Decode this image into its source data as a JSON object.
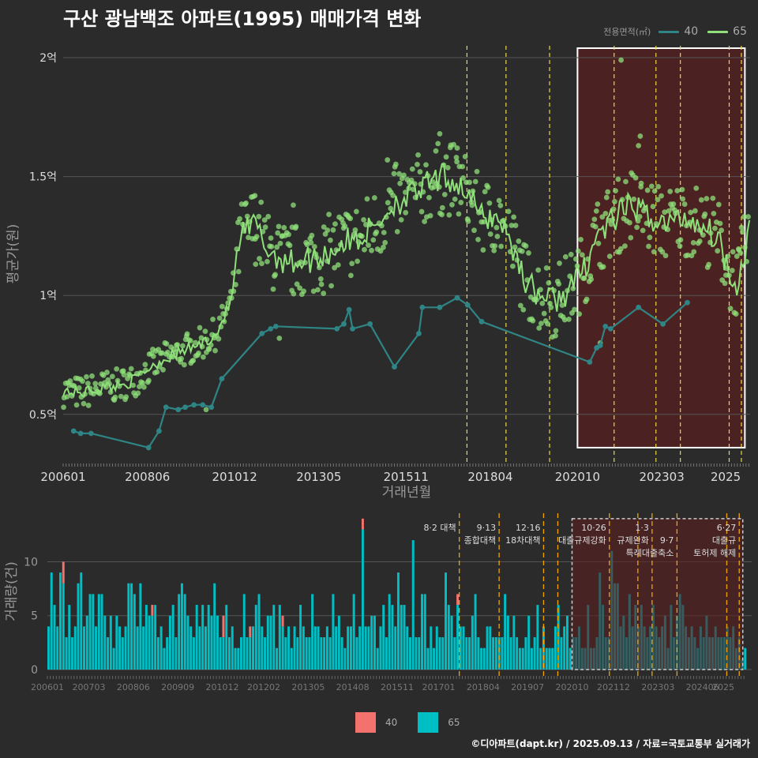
{
  "title": "구산 광남백조 아파트(1995) 매매가격 변화",
  "legend_top": {
    "label": "전용면적(㎡)",
    "items": [
      {
        "name": "40",
        "color": "#2f8585"
      },
      {
        "name": "65",
        "color": "#8fe07a"
      }
    ]
  },
  "legend_bottom": {
    "items": [
      {
        "name": "40",
        "color": "#f4726e"
      },
      {
        "name": "65",
        "color": "#00bfc4"
      }
    ]
  },
  "footer": "©디아파트(dapt.kr) / 2025.09.13 / 자료=국토교통부 실거래가",
  "colors": {
    "bg": "#2b2b2b",
    "line40": "#2f8585",
    "line65": "#8fe07a",
    "bar40": "#f4726e",
    "bar65": "#00bfc4",
    "vline": "#e8d84b",
    "highlight": "#5a1e1e"
  },
  "chart_data": [
    {
      "type": "line",
      "ylabel": "평균가(원)",
      "xlabel": "거래년월",
      "x_ticks": [
        "200601",
        "200806",
        "201012",
        "201305",
        "201511",
        "201804",
        "202010",
        "202303",
        "2025"
      ],
      "y_ticks": [
        {
          "v": 0.5,
          "label": "0.5억"
        },
        {
          "v": 1.0,
          "label": "1억"
        },
        {
          "v": 1.5,
          "label": "1.5억"
        },
        {
          "v": 2.0,
          "label": "2억"
        }
      ],
      "ylim": [
        0.3,
        2.05
      ],
      "xlim": [
        2006.0,
        2025.7
      ],
      "policy_lines": [
        2017.58,
        2018.7,
        2019.95,
        2021.8,
        2023.0,
        2023.7,
        2025.1,
        2025.45
      ],
      "highlight": {
        "x0": 2020.75,
        "x1": 2025.55,
        "y0": 0.36,
        "y1": 2.04
      },
      "series": [
        {
          "name": "40",
          "points": [
            [
              2006.3,
              0.43
            ],
            [
              2006.5,
              0.42
            ],
            [
              2006.8,
              0.42
            ],
            [
              2008.45,
              0.36
            ],
            [
              2008.75,
              0.43
            ],
            [
              2008.95,
              0.53
            ],
            [
              2009.3,
              0.52
            ],
            [
              2009.5,
              0.53
            ],
            [
              2009.75,
              0.54
            ],
            [
              2010.0,
              0.54
            ],
            [
              2010.25,
              0.53
            ],
            [
              2010.55,
              0.65
            ],
            [
              2011.7,
              0.84
            ],
            [
              2011.95,
              0.86
            ],
            [
              2012.1,
              0.87
            ],
            [
              2013.85,
              0.86
            ],
            [
              2014.05,
              0.88
            ],
            [
              2014.2,
              0.94
            ],
            [
              2014.3,
              0.86
            ],
            [
              2014.8,
              0.88
            ],
            [
              2015.5,
              0.7
            ],
            [
              2016.2,
              0.84
            ],
            [
              2016.3,
              0.95
            ],
            [
              2016.8,
              0.95
            ],
            [
              2017.3,
              0.99
            ],
            [
              2017.6,
              0.96
            ],
            [
              2018.0,
              0.89
            ],
            [
              2021.1,
              0.72
            ],
            [
              2021.3,
              0.78
            ],
            [
              2021.4,
              0.79
            ],
            [
              2021.55,
              0.87
            ],
            [
              2021.7,
              0.86
            ],
            [
              2022.5,
              0.95
            ],
            [
              2023.2,
              0.88
            ],
            [
              2023.9,
              0.97
            ]
          ]
        },
        {
          "name": "65",
          "anchors": [
            [
              2006.0,
              0.6
            ],
            [
              2006.5,
              0.59
            ],
            [
              2007.0,
              0.61
            ],
            [
              2007.5,
              0.62
            ],
            [
              2008.0,
              0.64
            ],
            [
              2008.5,
              0.7
            ],
            [
              2009.0,
              0.74
            ],
            [
              2009.5,
              0.77
            ],
            [
              2010.0,
              0.8
            ],
            [
              2010.4,
              0.84
            ],
            [
              2010.8,
              0.97
            ],
            [
              2011.1,
              1.25
            ],
            [
              2011.5,
              1.3
            ],
            [
              2011.9,
              1.18
            ],
            [
              2012.5,
              1.14
            ],
            [
              2013.0,
              1.15
            ],
            [
              2013.5,
              1.17
            ],
            [
              2014.0,
              1.22
            ],
            [
              2014.5,
              1.24
            ],
            [
              2015.0,
              1.3
            ],
            [
              2015.5,
              1.39
            ],
            [
              2016.0,
              1.42
            ],
            [
              2016.5,
              1.47
            ],
            [
              2017.0,
              1.5
            ],
            [
              2017.5,
              1.45
            ],
            [
              2018.0,
              1.33
            ],
            [
              2018.5,
              1.33
            ],
            [
              2018.9,
              1.2
            ],
            [
              2019.3,
              1.05
            ],
            [
              2019.7,
              1.0
            ],
            [
              2020.1,
              0.98
            ],
            [
              2020.5,
              1.02
            ],
            [
              2020.9,
              1.1
            ],
            [
              2021.3,
              1.25
            ],
            [
              2021.8,
              1.32
            ],
            [
              2022.3,
              1.38
            ],
            [
              2022.8,
              1.33
            ],
            [
              2023.3,
              1.3
            ],
            [
              2023.8,
              1.33
            ],
            [
              2024.3,
              1.3
            ],
            [
              2024.8,
              1.24
            ],
            [
              2025.1,
              1.1
            ],
            [
              2025.35,
              1.05
            ],
            [
              2025.7,
              1.3
            ]
          ],
          "outliers": [
            [
              2022.0,
              1.99
            ],
            [
              2022.55,
              1.67
            ],
            [
              2022.5,
              1.63
            ],
            [
              2016.8,
              1.68
            ],
            [
              2011.5,
              1.42
            ],
            [
              2017.3,
              1.62
            ],
            [
              2015.3,
              1.57
            ],
            [
              2010.1,
              0.52
            ],
            [
              2012.2,
              0.82
            ],
            [
              2012.6,
              1.38
            ],
            [
              2021.4,
              0.8
            ]
          ]
        }
      ]
    },
    {
      "type": "bar",
      "ylabel": "거래량(건)",
      "x_ticks": [
        "200601",
        "200703",
        "200806",
        "200909",
        "201012",
        "201202",
        "201305",
        "201408",
        "201511",
        "201701",
        "201804",
        "201907",
        "202010",
        "202112",
        "202303",
        "202406",
        "2025"
      ],
      "y_ticks": [
        0,
        5,
        10
      ],
      "ylim": [
        0,
        14.5
      ],
      "months": 236,
      "series": [
        {
          "name": "65",
          "values": [
            4,
            9,
            6,
            4,
            9,
            8,
            3,
            6,
            3,
            4,
            8,
            9,
            4,
            5,
            7,
            7,
            4,
            7,
            7,
            5,
            3,
            5,
            2,
            5,
            4,
            3,
            4,
            8,
            8,
            7,
            4,
            8,
            4,
            6,
            5,
            5,
            6,
            3,
            4,
            2,
            3,
            5,
            6,
            3,
            7,
            8,
            7,
            5,
            4,
            3,
            6,
            4,
            6,
            4,
            6,
            5,
            8,
            5,
            3,
            3,
            6,
            3,
            4,
            2,
            2,
            3,
            7,
            3,
            3,
            4,
            6,
            7,
            4,
            3,
            5,
            5,
            6,
            2,
            6,
            4,
            3,
            4,
            2,
            4,
            3,
            6,
            4,
            3,
            3,
            7,
            4,
            4,
            3,
            3,
            4,
            3,
            7,
            4,
            5,
            3,
            2,
            4,
            4,
            7,
            3,
            4,
            13,
            4,
            4,
            5,
            5,
            2,
            4,
            6,
            3,
            7,
            6,
            4,
            9,
            6,
            6,
            4,
            3,
            12,
            3,
            3,
            7,
            7,
            2,
            4,
            2,
            4,
            3,
            3,
            9,
            6,
            5,
            3,
            6,
            4,
            4,
            3,
            3,
            5,
            7,
            3,
            2,
            2,
            4,
            4,
            3,
            3,
            3,
            3,
            7,
            5,
            3,
            5,
            3,
            2,
            2,
            3,
            5,
            2,
            3,
            6,
            2,
            4,
            2,
            2,
            2,
            4,
            6,
            3,
            4,
            5,
            2,
            3,
            3,
            4,
            2,
            2,
            6,
            2,
            2,
            3,
            9,
            6,
            3,
            3,
            11,
            8,
            8,
            4,
            5,
            3,
            7,
            4,
            6,
            4,
            6,
            4,
            3,
            4,
            6,
            4,
            3,
            4,
            5,
            2,
            6,
            3,
            5,
            7,
            6,
            4,
            3,
            4,
            3,
            2,
            4,
            3,
            5,
            3,
            3,
            4,
            3,
            3,
            3,
            4,
            3,
            4,
            2,
            3,
            1,
            2,
            4
          ]
        },
        {
          "name": "40",
          "values": [
            0,
            0,
            0,
            0,
            0,
            2,
            0,
            0,
            0,
            0,
            0,
            0,
            0,
            0,
            0,
            0,
            0,
            0,
            0,
            0,
            0,
            0,
            0,
            0,
            0,
            0,
            0,
            0,
            0,
            0,
            0,
            0,
            0,
            0,
            0,
            1,
            0,
            0,
            0,
            0,
            0,
            0,
            0,
            0,
            0,
            0,
            0,
            0,
            0,
            0,
            0,
            0,
            0,
            0,
            0,
            0,
            0,
            0,
            0,
            2,
            0,
            0,
            0,
            0,
            0,
            0,
            0,
            0,
            1,
            0,
            0,
            0,
            0,
            0,
            0,
            0,
            0,
            0,
            0,
            1,
            0,
            0,
            0,
            0,
            0,
            0,
            0,
            0,
            0,
            0,
            0,
            0,
            0,
            0,
            0,
            0,
            0,
            0,
            0,
            0,
            0,
            0,
            0,
            0,
            0,
            0,
            1,
            0,
            0,
            0,
            0,
            0,
            0,
            0,
            0,
            0,
            0,
            0,
            0,
            0,
            0,
            0,
            0,
            0,
            0,
            0,
            0,
            0,
            0,
            0,
            0,
            0,
            0,
            0,
            0,
            0,
            0,
            0,
            1,
            0,
            0,
            0,
            0,
            0,
            0,
            0,
            0,
            0,
            0,
            0,
            0,
            0,
            0,
            0,
            0,
            0,
            0,
            0,
            0,
            0,
            0,
            0,
            0,
            0,
            0,
            0,
            0,
            0,
            0,
            0,
            0,
            0,
            0,
            0,
            0,
            0,
            0,
            0,
            0,
            0,
            0,
            0,
            0,
            0,
            0,
            0,
            0,
            0,
            0,
            0,
            0,
            0,
            0,
            0,
            0,
            0,
            0,
            0,
            0,
            0,
            0,
            0,
            0,
            0,
            0,
            0,
            0,
            0,
            0,
            0,
            0,
            0,
            0,
            0,
            0,
            0,
            0,
            0,
            0,
            0,
            0,
            0,
            0,
            0,
            0,
            0,
            0,
            0,
            0,
            0,
            0,
            0,
            0,
            0,
            0,
            0
          ]
        }
      ],
      "policy_lines": [
        2017.58,
        2018.7,
        2019.95,
        2020.35,
        2021.8,
        2022.6,
        2023.0,
        2023.7,
        2025.1,
        2025.45
      ],
      "highlight": {
        "x0": 2020.75,
        "x1": 2025.55,
        "y0": 0,
        "y1": 14
      },
      "annotations": [
        {
          "x": 2017.58,
          "lines": [
            "8·2 대책"
          ]
        },
        {
          "x": 2018.7,
          "lines": [
            "9·13",
            "종합대책"
          ]
        },
        {
          "x": 2019.95,
          "lines": [
            "12·16",
            "18차대책"
          ]
        },
        {
          "x": 2021.8,
          "lines": [
            "10·26",
            "대출규제강화"
          ]
        },
        {
          "x": 2023.0,
          "lines": [
            "1·3",
            "규제완화"
          ]
        },
        {
          "x": 2023.7,
          "lines": [
            "",
            "9·7",
            "특례대출축소"
          ]
        },
        {
          "x": 2025.45,
          "lines": [
            "6·27",
            "대출규",
            "토허제 해제"
          ]
        }
      ]
    }
  ]
}
